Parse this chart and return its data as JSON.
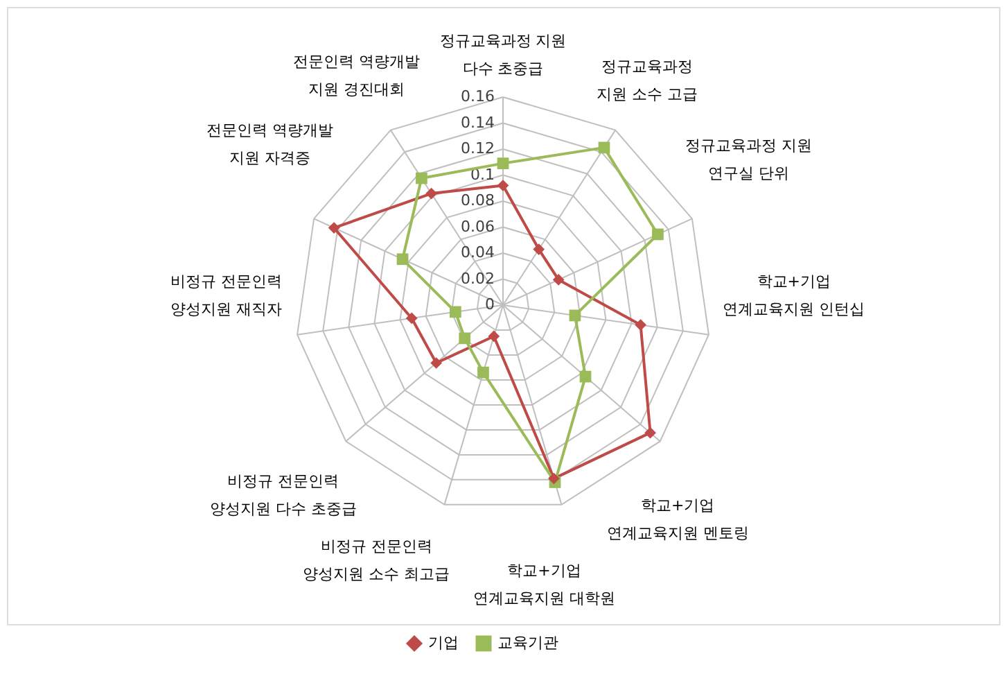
{
  "chart_data": {
    "type": "radar",
    "categories": [
      "정규교육과정 지원 다수 초중급",
      "정규교육과정 지원 소수 고급",
      "정규교육과정 지원 연구실 단위",
      "학교+기업 연계교육지원 인턴십",
      "학교+기업 연계교육지원 멘토링",
      "학교+기업 연계교육지원 대학원",
      "비정규 전문인력 양성지원 소수 최고급",
      "비정규 전문인력 양성지원 다수 초중급",
      "비정규 전문인력 양성지원 재직자",
      "전문인력 역량개발 지원 자격증",
      "전문인력 역량개발 지원 경진대회"
    ],
    "series": [
      {
        "name": "기업",
        "color": "#be4b48",
        "marker": "diamond",
        "values": [
          0.092,
          0.051,
          0.047,
          0.107,
          0.15,
          0.139,
          0.025,
          0.068,
          0.071,
          0.143,
          0.102
        ]
      },
      {
        "name": "교육기관",
        "color": "#9bbb59",
        "marker": "square",
        "values": [
          0.109,
          0.144,
          0.131,
          0.056,
          0.084,
          0.142,
          0.054,
          0.039,
          0.037,
          0.085,
          0.116
        ]
      }
    ],
    "ylim": [
      0,
      0.16
    ],
    "yticks": [
      0,
      0.02,
      0.04,
      0.06,
      0.08,
      0.1,
      0.12,
      0.14,
      0.16
    ],
    "grid": true,
    "legend": "bottom"
  }
}
